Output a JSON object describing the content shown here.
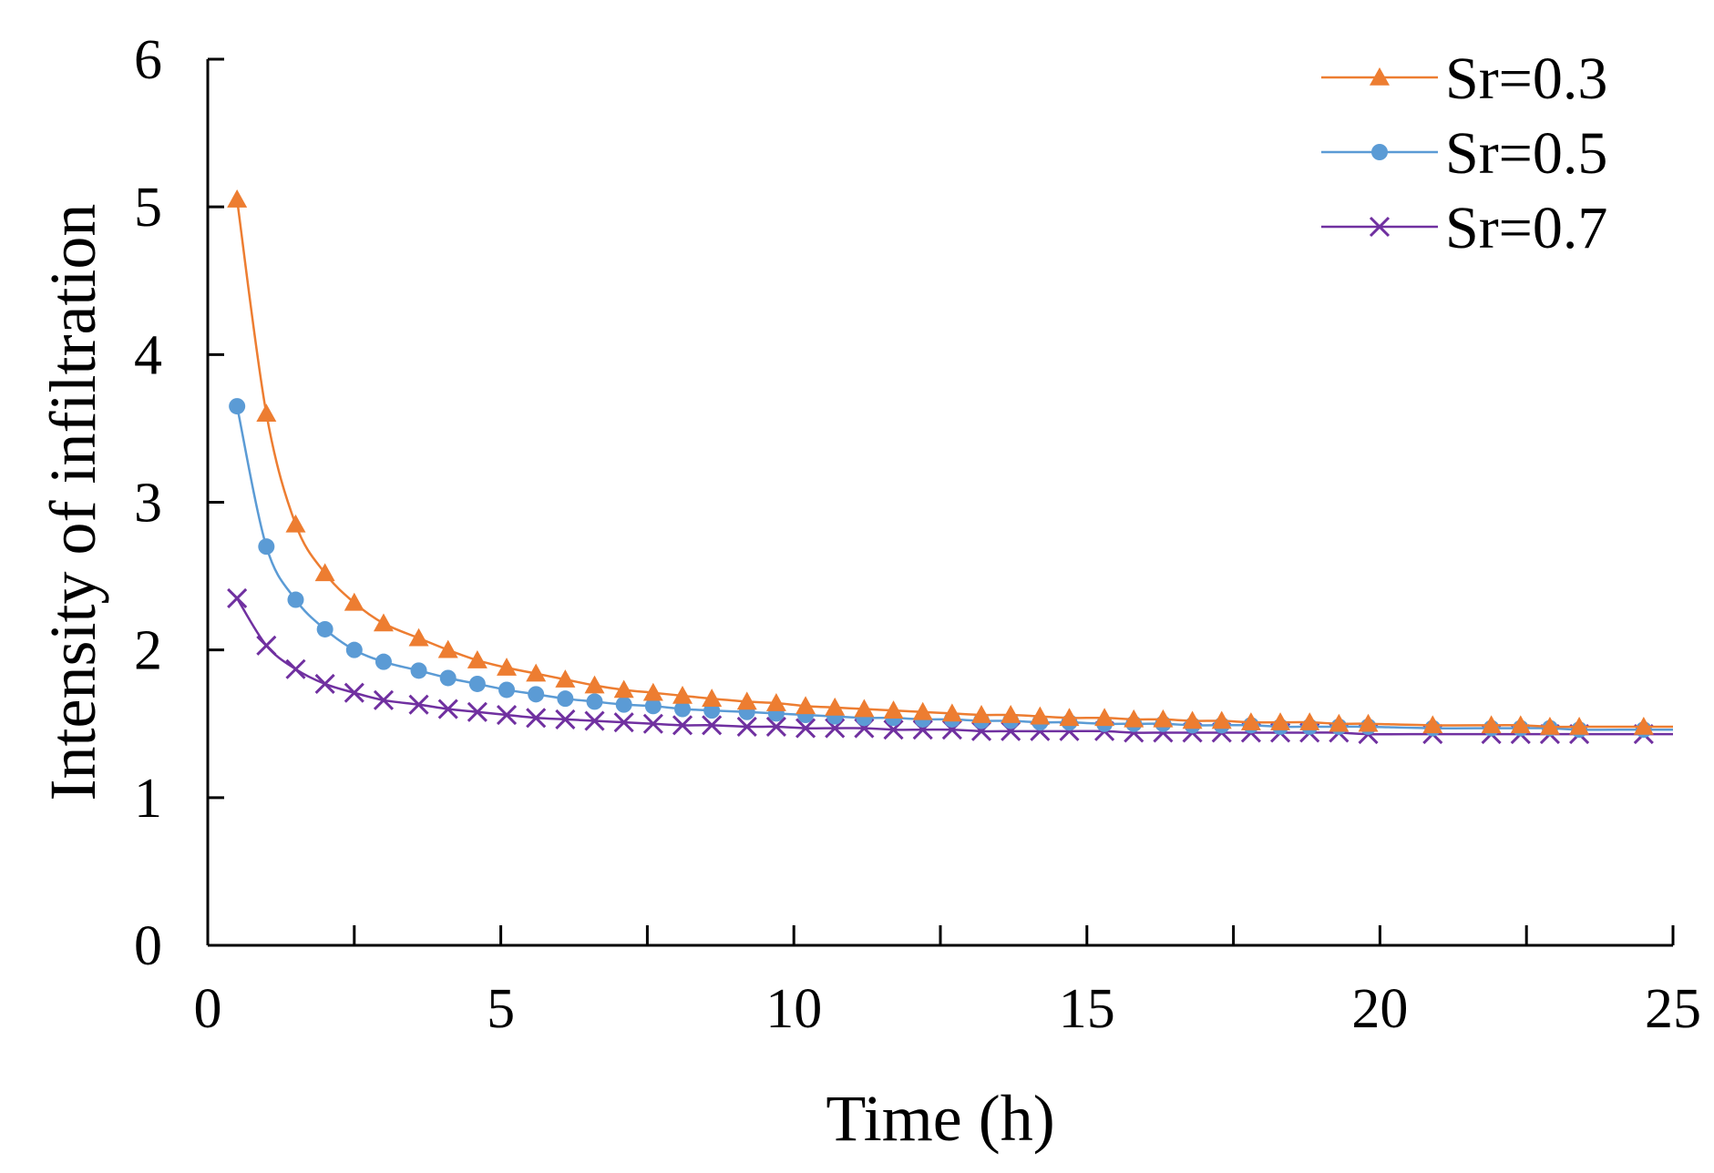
{
  "chart_data": {
    "type": "line",
    "title": "",
    "xlabel": "Time (h)",
    "ylabel": "Intensity of infiltration",
    "xlim": [
      0,
      25
    ],
    "ylim": [
      0,
      6
    ],
    "xticks": [
      0,
      5,
      10,
      15,
      20,
      25
    ],
    "yticks": [
      0,
      1,
      2,
      3,
      4,
      5,
      6
    ],
    "xtick_labels": [
      "0",
      "5",
      "10",
      "15",
      "20",
      "25"
    ],
    "ytick_labels": [
      "0",
      "1",
      "2",
      "3",
      "4",
      "5",
      "6"
    ],
    "grid": false,
    "legend_position": "top-right",
    "series": [
      {
        "name": "Sr=0.3",
        "color": "#ED7D31",
        "marker": "triangle",
        "x": [
          0.5,
          1,
          1.5,
          2,
          2.5,
          3,
          3.6,
          4.1,
          4.6,
          5.1,
          5.6,
          6.1,
          6.6,
          7.1,
          7.6,
          8.1,
          8.6,
          9.2,
          9.7,
          10.2,
          10.7,
          11.2,
          11.7,
          12.2,
          12.7,
          13.2,
          13.7,
          14.2,
          14.7,
          15.3,
          15.8,
          16.3,
          16.8,
          17.3,
          17.8,
          18.3,
          18.8,
          19.3,
          19.8,
          20.9,
          21.9,
          22.4,
          22.9,
          23.4,
          24.5,
          25
        ],
        "values": [
          5.05,
          3.6,
          2.85,
          2.52,
          2.32,
          2.18,
          2.08,
          2.0,
          1.93,
          1.88,
          1.84,
          1.8,
          1.76,
          1.73,
          1.71,
          1.69,
          1.67,
          1.65,
          1.64,
          1.62,
          1.61,
          1.6,
          1.59,
          1.58,
          1.57,
          1.56,
          1.56,
          1.55,
          1.54,
          1.54,
          1.53,
          1.53,
          1.52,
          1.52,
          1.51,
          1.51,
          1.51,
          1.5,
          1.5,
          1.49,
          1.49,
          1.49,
          1.48,
          1.48,
          1.48,
          1.48
        ]
      },
      {
        "name": "Sr=0.5",
        "color": "#5B9BD5",
        "marker": "circle",
        "x": [
          0.5,
          1,
          1.5,
          2,
          2.5,
          3,
          3.6,
          4.1,
          4.6,
          5.1,
          5.6,
          6.1,
          6.6,
          7.1,
          7.6,
          8.1,
          8.6,
          9.2,
          9.7,
          10.2,
          10.7,
          11.2,
          11.7,
          12.2,
          12.7,
          13.2,
          13.7,
          14.2,
          14.7,
          15.3,
          15.8,
          16.3,
          16.8,
          17.3,
          17.8,
          18.3,
          18.8,
          19.3,
          19.8,
          20.9,
          21.9,
          22.4,
          22.9,
          23.4,
          24.5,
          25
        ],
        "values": [
          3.65,
          2.7,
          2.34,
          2.14,
          2.0,
          1.92,
          1.86,
          1.81,
          1.77,
          1.73,
          1.7,
          1.67,
          1.65,
          1.63,
          1.62,
          1.6,
          1.59,
          1.58,
          1.57,
          1.56,
          1.55,
          1.54,
          1.54,
          1.53,
          1.53,
          1.52,
          1.52,
          1.51,
          1.51,
          1.5,
          1.5,
          1.5,
          1.49,
          1.49,
          1.49,
          1.48,
          1.48,
          1.48,
          1.48,
          1.47,
          1.47,
          1.47,
          1.47,
          1.46,
          1.46,
          1.46
        ]
      },
      {
        "name": "Sr=0.7",
        "color": "#7030A0",
        "marker": "x",
        "x": [
          0.5,
          1,
          1.5,
          2,
          2.5,
          3,
          3.6,
          4.1,
          4.6,
          5.1,
          5.6,
          6.1,
          6.6,
          7.1,
          7.6,
          8.1,
          8.6,
          9.2,
          9.7,
          10.2,
          10.7,
          11.2,
          11.7,
          12.2,
          12.7,
          13.2,
          13.7,
          14.2,
          14.7,
          15.3,
          15.8,
          16.3,
          16.8,
          17.3,
          17.8,
          18.3,
          18.8,
          19.3,
          19.8,
          20.9,
          21.9,
          22.4,
          22.9,
          23.4,
          24.5,
          25
        ],
        "values": [
          2.35,
          2.03,
          1.87,
          1.77,
          1.71,
          1.66,
          1.63,
          1.6,
          1.58,
          1.56,
          1.54,
          1.53,
          1.52,
          1.51,
          1.5,
          1.49,
          1.49,
          1.48,
          1.48,
          1.47,
          1.47,
          1.47,
          1.46,
          1.46,
          1.46,
          1.45,
          1.45,
          1.45,
          1.45,
          1.45,
          1.44,
          1.44,
          1.44,
          1.44,
          1.44,
          1.44,
          1.44,
          1.44,
          1.43,
          1.43,
          1.43,
          1.43,
          1.43,
          1.43,
          1.43,
          1.43
        ]
      }
    ]
  }
}
